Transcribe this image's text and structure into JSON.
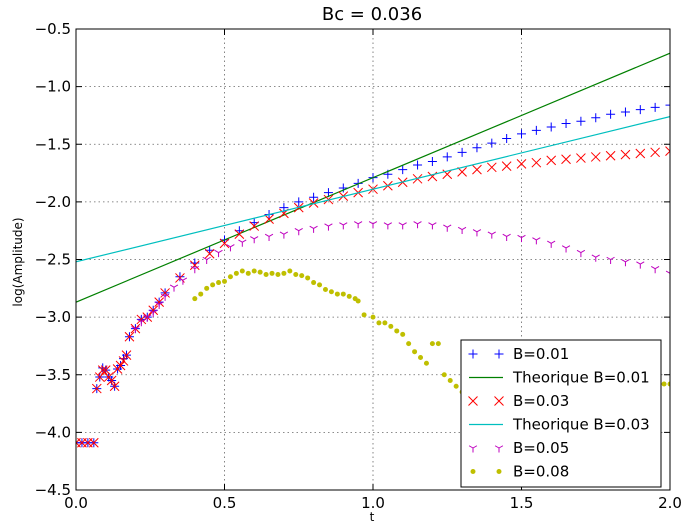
{
  "chart_data": {
    "type": "scatter",
    "title": "Bc = 0.036",
    "xlabel": "t",
    "ylabel": "log(Amplitude)",
    "xlim": [
      0.0,
      2.0
    ],
    "ylim": [
      -4.5,
      -0.5
    ],
    "xticks": [
      0.0,
      0.5,
      1.0,
      1.5,
      2.0
    ],
    "xtick_labels": [
      "0.0",
      "0.5",
      "1.0",
      "1.5",
      "2.0"
    ],
    "yticks": [
      -0.5,
      -1.0,
      -1.5,
      -2.0,
      -2.5,
      -3.0,
      -3.5,
      -4.0,
      -4.5
    ],
    "ytick_labels": [
      "−0.5",
      "−1.0",
      "−1.5",
      "−2.0",
      "−2.5",
      "−3.0",
      "−3.5",
      "−4.0",
      "−4.5"
    ],
    "grid": true,
    "legend_position": "bottom-right",
    "series": [
      {
        "name": "B=0.01",
        "kind": "marker",
        "marker": "plus",
        "color": "#0000ff",
        "points": [
          [
            0.0,
            -4.09
          ],
          [
            0.02,
            -4.09
          ],
          [
            0.04,
            -4.09
          ],
          [
            0.06,
            -4.09
          ],
          [
            0.07,
            -3.62
          ],
          [
            0.08,
            -3.52
          ],
          [
            0.09,
            -3.44
          ],
          [
            0.1,
            -3.46
          ],
          [
            0.11,
            -3.52
          ],
          [
            0.12,
            -3.55
          ],
          [
            0.13,
            -3.6
          ],
          [
            0.14,
            -3.45
          ],
          [
            0.15,
            -3.42
          ],
          [
            0.16,
            -3.36
          ],
          [
            0.17,
            -3.33
          ],
          [
            0.18,
            -3.17
          ],
          [
            0.2,
            -3.1
          ],
          [
            0.22,
            -3.02
          ],
          [
            0.24,
            -3.0
          ],
          [
            0.26,
            -2.94
          ],
          [
            0.28,
            -2.87
          ],
          [
            0.3,
            -2.79
          ],
          [
            0.35,
            -2.65
          ],
          [
            0.4,
            -2.53
          ],
          [
            0.45,
            -2.42
          ],
          [
            0.5,
            -2.33
          ],
          [
            0.55,
            -2.25
          ],
          [
            0.6,
            -2.18
          ],
          [
            0.65,
            -2.11
          ],
          [
            0.7,
            -2.05
          ],
          [
            0.75,
            -2.0
          ],
          [
            0.8,
            -1.96
          ],
          [
            0.85,
            -1.92
          ],
          [
            0.9,
            -1.88
          ],
          [
            0.95,
            -1.84
          ],
          [
            1.0,
            -1.79
          ],
          [
            1.05,
            -1.76
          ],
          [
            1.1,
            -1.72
          ],
          [
            1.15,
            -1.68
          ],
          [
            1.2,
            -1.65
          ],
          [
            1.25,
            -1.61
          ],
          [
            1.3,
            -1.57
          ],
          [
            1.35,
            -1.53
          ],
          [
            1.4,
            -1.49
          ],
          [
            1.45,
            -1.45
          ],
          [
            1.5,
            -1.41
          ],
          [
            1.55,
            -1.38
          ],
          [
            1.6,
            -1.35
          ],
          [
            1.65,
            -1.32
          ],
          [
            1.7,
            -1.3
          ],
          [
            1.75,
            -1.27
          ],
          [
            1.8,
            -1.24
          ],
          [
            1.85,
            -1.22
          ],
          [
            1.9,
            -1.2
          ],
          [
            1.95,
            -1.18
          ],
          [
            2.0,
            -1.16
          ]
        ]
      },
      {
        "name": "Theorique B=0.01",
        "kind": "line",
        "color": "#008000",
        "points": [
          [
            0.0,
            -2.87
          ],
          [
            2.0,
            -0.71
          ]
        ]
      },
      {
        "name": "B=0.03",
        "kind": "marker",
        "marker": "x",
        "color": "#ff0000",
        "points": [
          [
            0.0,
            -4.09
          ],
          [
            0.02,
            -4.09
          ],
          [
            0.04,
            -4.09
          ],
          [
            0.06,
            -4.09
          ],
          [
            0.07,
            -3.62
          ],
          [
            0.08,
            -3.52
          ],
          [
            0.09,
            -3.46
          ],
          [
            0.1,
            -3.46
          ],
          [
            0.11,
            -3.52
          ],
          [
            0.12,
            -3.55
          ],
          [
            0.13,
            -3.6
          ],
          [
            0.14,
            -3.45
          ],
          [
            0.15,
            -3.42
          ],
          [
            0.16,
            -3.38
          ],
          [
            0.17,
            -3.33
          ],
          [
            0.18,
            -3.17
          ],
          [
            0.2,
            -3.1
          ],
          [
            0.22,
            -3.02
          ],
          [
            0.24,
            -3.0
          ],
          [
            0.26,
            -2.94
          ],
          [
            0.28,
            -2.87
          ],
          [
            0.3,
            -2.79
          ],
          [
            0.35,
            -2.66
          ],
          [
            0.4,
            -2.55
          ],
          [
            0.45,
            -2.45
          ],
          [
            0.5,
            -2.36
          ],
          [
            0.55,
            -2.28
          ],
          [
            0.6,
            -2.21
          ],
          [
            0.65,
            -2.15
          ],
          [
            0.7,
            -2.1
          ],
          [
            0.75,
            -2.05
          ],
          [
            0.8,
            -2.01
          ],
          [
            0.85,
            -1.98
          ],
          [
            0.9,
            -1.95
          ],
          [
            0.95,
            -1.92
          ],
          [
            1.0,
            -1.89
          ],
          [
            1.05,
            -1.86
          ],
          [
            1.1,
            -1.83
          ],
          [
            1.15,
            -1.8
          ],
          [
            1.2,
            -1.78
          ],
          [
            1.25,
            -1.76
          ],
          [
            1.3,
            -1.74
          ],
          [
            1.35,
            -1.72
          ],
          [
            1.4,
            -1.7
          ],
          [
            1.45,
            -1.69
          ],
          [
            1.5,
            -1.67
          ],
          [
            1.55,
            -1.66
          ],
          [
            1.6,
            -1.64
          ],
          [
            1.65,
            -1.63
          ],
          [
            1.7,
            -1.62
          ],
          [
            1.75,
            -1.61
          ],
          [
            1.8,
            -1.6
          ],
          [
            1.85,
            -1.59
          ],
          [
            1.9,
            -1.58
          ],
          [
            1.95,
            -1.57
          ],
          [
            2.0,
            -1.56
          ]
        ]
      },
      {
        "name": "Theorique B=0.03",
        "kind": "line",
        "color": "#00bfbf",
        "points": [
          [
            0.0,
            -2.52
          ],
          [
            2.0,
            -1.26
          ]
        ]
      },
      {
        "name": "B=0.05",
        "kind": "marker",
        "marker": "tri",
        "color": "#bf00bf",
        "points": [
          [
            0.2,
            -3.1
          ],
          [
            0.22,
            -3.04
          ],
          [
            0.24,
            -3.0
          ],
          [
            0.26,
            -2.96
          ],
          [
            0.28,
            -2.89
          ],
          [
            0.3,
            -2.82
          ],
          [
            0.33,
            -2.74
          ],
          [
            0.36,
            -2.68
          ],
          [
            0.4,
            -2.58
          ],
          [
            0.44,
            -2.5
          ],
          [
            0.48,
            -2.44
          ],
          [
            0.52,
            -2.39
          ],
          [
            0.56,
            -2.35
          ],
          [
            0.6,
            -2.32
          ],
          [
            0.65,
            -2.3
          ],
          [
            0.7,
            -2.28
          ],
          [
            0.75,
            -2.25
          ],
          [
            0.8,
            -2.23
          ],
          [
            0.85,
            -2.21
          ],
          [
            0.9,
            -2.2
          ],
          [
            0.95,
            -2.19
          ],
          [
            1.0,
            -2.19
          ],
          [
            1.05,
            -2.2
          ],
          [
            1.1,
            -2.2
          ],
          [
            1.15,
            -2.19
          ],
          [
            1.2,
            -2.2
          ],
          [
            1.25,
            -2.22
          ],
          [
            1.3,
            -2.24
          ],
          [
            1.35,
            -2.26
          ],
          [
            1.4,
            -2.28
          ],
          [
            1.45,
            -2.3
          ],
          [
            1.5,
            -2.31
          ],
          [
            1.55,
            -2.33
          ],
          [
            1.6,
            -2.36
          ],
          [
            1.65,
            -2.4
          ],
          [
            1.7,
            -2.44
          ],
          [
            1.75,
            -2.48
          ],
          [
            1.8,
            -2.5
          ],
          [
            1.85,
            -2.52
          ],
          [
            1.9,
            -2.54
          ],
          [
            1.95,
            -2.58
          ],
          [
            2.0,
            -2.62
          ]
        ]
      },
      {
        "name": "B=0.08",
        "kind": "marker",
        "marker": "dot",
        "color": "#bfbf00",
        "points": [
          [
            0.4,
            -2.84
          ],
          [
            0.42,
            -2.8
          ],
          [
            0.44,
            -2.75
          ],
          [
            0.46,
            -2.72
          ],
          [
            0.48,
            -2.7
          ],
          [
            0.5,
            -2.69
          ],
          [
            0.52,
            -2.65
          ],
          [
            0.54,
            -2.62
          ],
          [
            0.56,
            -2.6
          ],
          [
            0.58,
            -2.62
          ],
          [
            0.6,
            -2.6
          ],
          [
            0.62,
            -2.61
          ],
          [
            0.64,
            -2.63
          ],
          [
            0.66,
            -2.62
          ],
          [
            0.68,
            -2.63
          ],
          [
            0.7,
            -2.62
          ],
          [
            0.72,
            -2.6
          ],
          [
            0.74,
            -2.63
          ],
          [
            0.76,
            -2.64
          ],
          [
            0.78,
            -2.66
          ],
          [
            0.8,
            -2.7
          ],
          [
            0.82,
            -2.72
          ],
          [
            0.84,
            -2.76
          ],
          [
            0.86,
            -2.78
          ],
          [
            0.88,
            -2.8
          ],
          [
            0.9,
            -2.8
          ],
          [
            0.92,
            -2.82
          ],
          [
            0.94,
            -2.84
          ],
          [
            0.95,
            -2.86
          ],
          [
            0.97,
            -2.98
          ],
          [
            1.0,
            -3.0
          ],
          [
            1.02,
            -3.05
          ],
          [
            1.04,
            -3.05
          ],
          [
            1.06,
            -3.08
          ],
          [
            1.08,
            -3.12
          ],
          [
            1.1,
            -3.15
          ],
          [
            1.12,
            -3.23
          ],
          [
            1.14,
            -3.3
          ],
          [
            1.16,
            -3.35
          ],
          [
            1.18,
            -3.4
          ],
          [
            1.2,
            -3.23
          ],
          [
            1.22,
            -3.23
          ],
          [
            1.24,
            -3.5
          ],
          [
            1.26,
            -3.55
          ],
          [
            1.28,
            -3.6
          ],
          [
            1.3,
            -3.65
          ],
          [
            1.94,
            -3.58
          ],
          [
            1.96,
            -3.6
          ],
          [
            1.98,
            -3.58
          ],
          [
            2.0,
            -3.58
          ]
        ]
      }
    ]
  }
}
